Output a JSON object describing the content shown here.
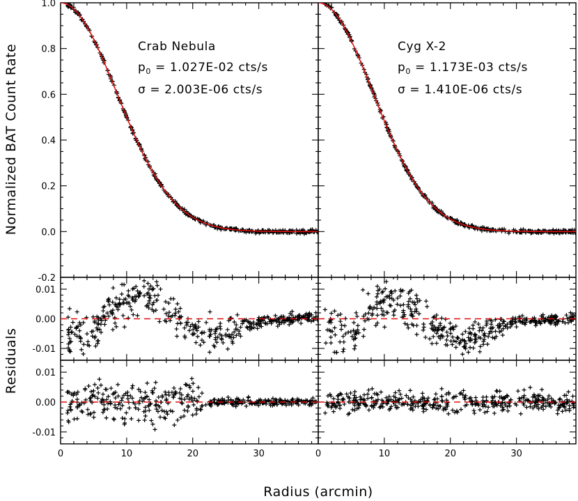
{
  "figure": {
    "ylabel_top": "Normalized BAT Count Rate",
    "ylabel_bottom": "Residuals",
    "xlabel": "Radius (arcmin)"
  },
  "chart_data": [
    {
      "type": "scatter",
      "panel": "top-left",
      "annotations": [
        "Crab Nebula",
        "p0 = 1.027E-02 cts/s",
        "σ = 2.003E-06 cts/s"
      ],
      "xlim": [
        0,
        39
      ],
      "ylim": [
        -0.2,
        1.0
      ],
      "yticks": [
        "-0.2",
        "0.0",
        "0.2",
        "0.4",
        "0.6",
        "0.8",
        "1.0"
      ],
      "model": {
        "shape": "gaussian",
        "amplitude": 1.0,
        "sigma_arcmin": 8.5,
        "color": "#e01010"
      },
      "points": "normalized count rate vs radius, following the model; ~400 points from 1 to 39 arcmin"
    },
    {
      "type": "scatter",
      "panel": "top-right",
      "annotations": [
        "Cyg X-2",
        "p0 = 1.173E-03 cts/s",
        "σ = 1.410E-06 cts/s"
      ],
      "xlim": [
        0,
        39
      ],
      "ylim": [
        -0.2,
        1.0
      ],
      "model": {
        "shape": "gaussian",
        "amplitude": 1.0,
        "sigma_arcmin": 8.3,
        "color": "#e01010"
      },
      "points": "normalized count rate vs radius, following the model; ~400 points from 1 to 39 arcmin"
    },
    {
      "type": "scatter",
      "panel": "middle-left",
      "xlim": [
        0,
        39
      ],
      "ylim": [
        -0.014,
        0.014
      ],
      "yticks": [
        "0.01",
        "0.00",
        "-0.01"
      ],
      "reference_line": {
        "y": 0,
        "style": "dashed",
        "color": "#e01010"
      },
      "residual_pattern": [
        [
          1,
          -0.006
        ],
        [
          4,
          -0.007
        ],
        [
          8,
          0.004
        ],
        [
          12,
          0.01
        ],
        [
          16,
          0.004
        ],
        [
          20,
          -0.005
        ],
        [
          24,
          -0.006
        ],
        [
          30,
          -0.001
        ],
        [
          39,
          0.001
        ]
      ]
    },
    {
      "type": "scatter",
      "panel": "middle-right",
      "xlim": [
        0,
        39
      ],
      "ylim": [
        -0.014,
        0.014
      ],
      "reference_line": {
        "y": 0,
        "style": "dashed",
        "color": "#e01010"
      },
      "residual_pattern": [
        [
          5,
          -0.006
        ],
        [
          8,
          0.004
        ],
        [
          11,
          0.008
        ],
        [
          14,
          0.005
        ],
        [
          18,
          -0.004
        ],
        [
          22,
          -0.009
        ],
        [
          26,
          -0.005
        ],
        [
          30,
          -0.001
        ],
        [
          39,
          0.0
        ]
      ]
    },
    {
      "type": "scatter",
      "panel": "bottom-left",
      "xlim": [
        0,
        39
      ],
      "ylim": [
        -0.014,
        0.014
      ],
      "yticks": [
        "0.01",
        "0.00",
        "-0.01"
      ],
      "xticks": [
        "0",
        "10",
        "20",
        "30"
      ],
      "reference_line": {
        "y": 0,
        "style": "dashed",
        "color": "#e01010"
      },
      "residual_scatter": "±0.006 up to ~20 arcmin, shrinking near 0 beyond 25 arcmin"
    },
    {
      "type": "scatter",
      "panel": "bottom-right",
      "xlim": [
        0,
        39
      ],
      "ylim": [
        -0.014,
        0.014
      ],
      "xticks": [
        "0",
        "10",
        "20",
        "30"
      ],
      "reference_line": {
        "y": 0,
        "style": "dashed",
        "color": "#e01010"
      },
      "residual_scatter": "±0.004 across range"
    }
  ]
}
